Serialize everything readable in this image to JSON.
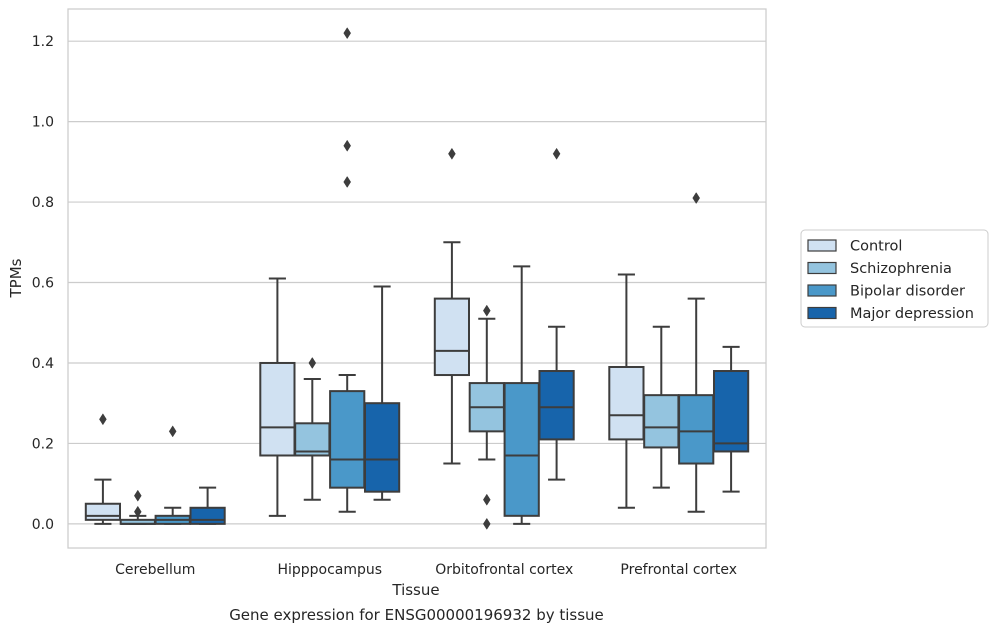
{
  "caption": "Gene expression for ENSG00000196932 by tissue",
  "chart_data": {
    "type": "boxplot",
    "xlabel": "Tissue",
    "ylabel": "TPMs",
    "ylim": [
      -0.06,
      1.28
    ],
    "yticks": [
      0.0,
      0.2,
      0.4,
      0.6,
      0.8,
      1.0,
      1.2
    ],
    "ytick_labels": [
      "0.0",
      "0.2",
      "0.4",
      "0.6",
      "0.8",
      "1.0",
      "1.2"
    ],
    "grid": true,
    "legend_position": "right",
    "categories": [
      "Cerebellum",
      "Hipppocampus",
      "Orbitofrontal cortex",
      "Prefrontal cortex"
    ],
    "series": [
      {
        "name": "Control",
        "color": "#d0e1f2",
        "boxes": [
          {
            "whisker_low": 0.0,
            "q1": 0.01,
            "median": 0.02,
            "q3": 0.05,
            "whisker_high": 0.11,
            "outliers": [
              0.26
            ]
          },
          {
            "whisker_low": 0.02,
            "q1": 0.17,
            "median": 0.24,
            "q3": 0.4,
            "whisker_high": 0.61,
            "outliers": []
          },
          {
            "whisker_low": 0.15,
            "q1": 0.37,
            "median": 0.43,
            "q3": 0.56,
            "whisker_high": 0.7,
            "outliers": [
              0.92
            ]
          },
          {
            "whisker_low": 0.04,
            "q1": 0.21,
            "median": 0.27,
            "q3": 0.39,
            "whisker_high": 0.62,
            "outliers": []
          }
        ]
      },
      {
        "name": "Schizophrenia",
        "color": "#94c4df",
        "boxes": [
          {
            "whisker_low": 0.0,
            "q1": 0.0,
            "median": 0.0,
            "q3": 0.01,
            "whisker_high": 0.02,
            "outliers": [
              0.07,
              0.03
            ]
          },
          {
            "whisker_low": 0.06,
            "q1": 0.17,
            "median": 0.18,
            "q3": 0.25,
            "whisker_high": 0.36,
            "outliers": [
              0.4
            ]
          },
          {
            "whisker_low": 0.16,
            "q1": 0.23,
            "median": 0.29,
            "q3": 0.35,
            "whisker_high": 0.51,
            "outliers": [
              0.53,
              0.06,
              0.0
            ]
          },
          {
            "whisker_low": 0.09,
            "q1": 0.19,
            "median": 0.24,
            "q3": 0.32,
            "whisker_high": 0.49,
            "outliers": []
          }
        ]
      },
      {
        "name": "Bipolar disorder",
        "color": "#4a98c9",
        "boxes": [
          {
            "whisker_low": 0.0,
            "q1": 0.0,
            "median": 0.01,
            "q3": 0.02,
            "whisker_high": 0.04,
            "outliers": [
              0.23
            ]
          },
          {
            "whisker_low": 0.03,
            "q1": 0.09,
            "median": 0.16,
            "q3": 0.33,
            "whisker_high": 0.37,
            "outliers": [
              1.22,
              0.94,
              0.85
            ]
          },
          {
            "whisker_low": 0.0,
            "q1": 0.02,
            "median": 0.17,
            "q3": 0.35,
            "whisker_high": 0.64,
            "outliers": []
          },
          {
            "whisker_low": 0.03,
            "q1": 0.15,
            "median": 0.23,
            "q3": 0.32,
            "whisker_high": 0.56,
            "outliers": [
              0.81
            ]
          }
        ]
      },
      {
        "name": "Major depression",
        "color": "#1764ab",
        "boxes": [
          {
            "whisker_low": 0.0,
            "q1": 0.0,
            "median": 0.01,
            "q3": 0.04,
            "whisker_high": 0.09,
            "outliers": []
          },
          {
            "whisker_low": 0.06,
            "q1": 0.08,
            "median": 0.16,
            "q3": 0.3,
            "whisker_high": 0.59,
            "outliers": []
          },
          {
            "whisker_low": 0.11,
            "q1": 0.21,
            "median": 0.29,
            "q3": 0.38,
            "whisker_high": 0.49,
            "outliers": [
              0.92
            ]
          },
          {
            "whisker_low": 0.08,
            "q1": 0.18,
            "median": 0.2,
            "q3": 0.38,
            "whisker_high": 0.44,
            "outliers": []
          }
        ]
      }
    ]
  }
}
